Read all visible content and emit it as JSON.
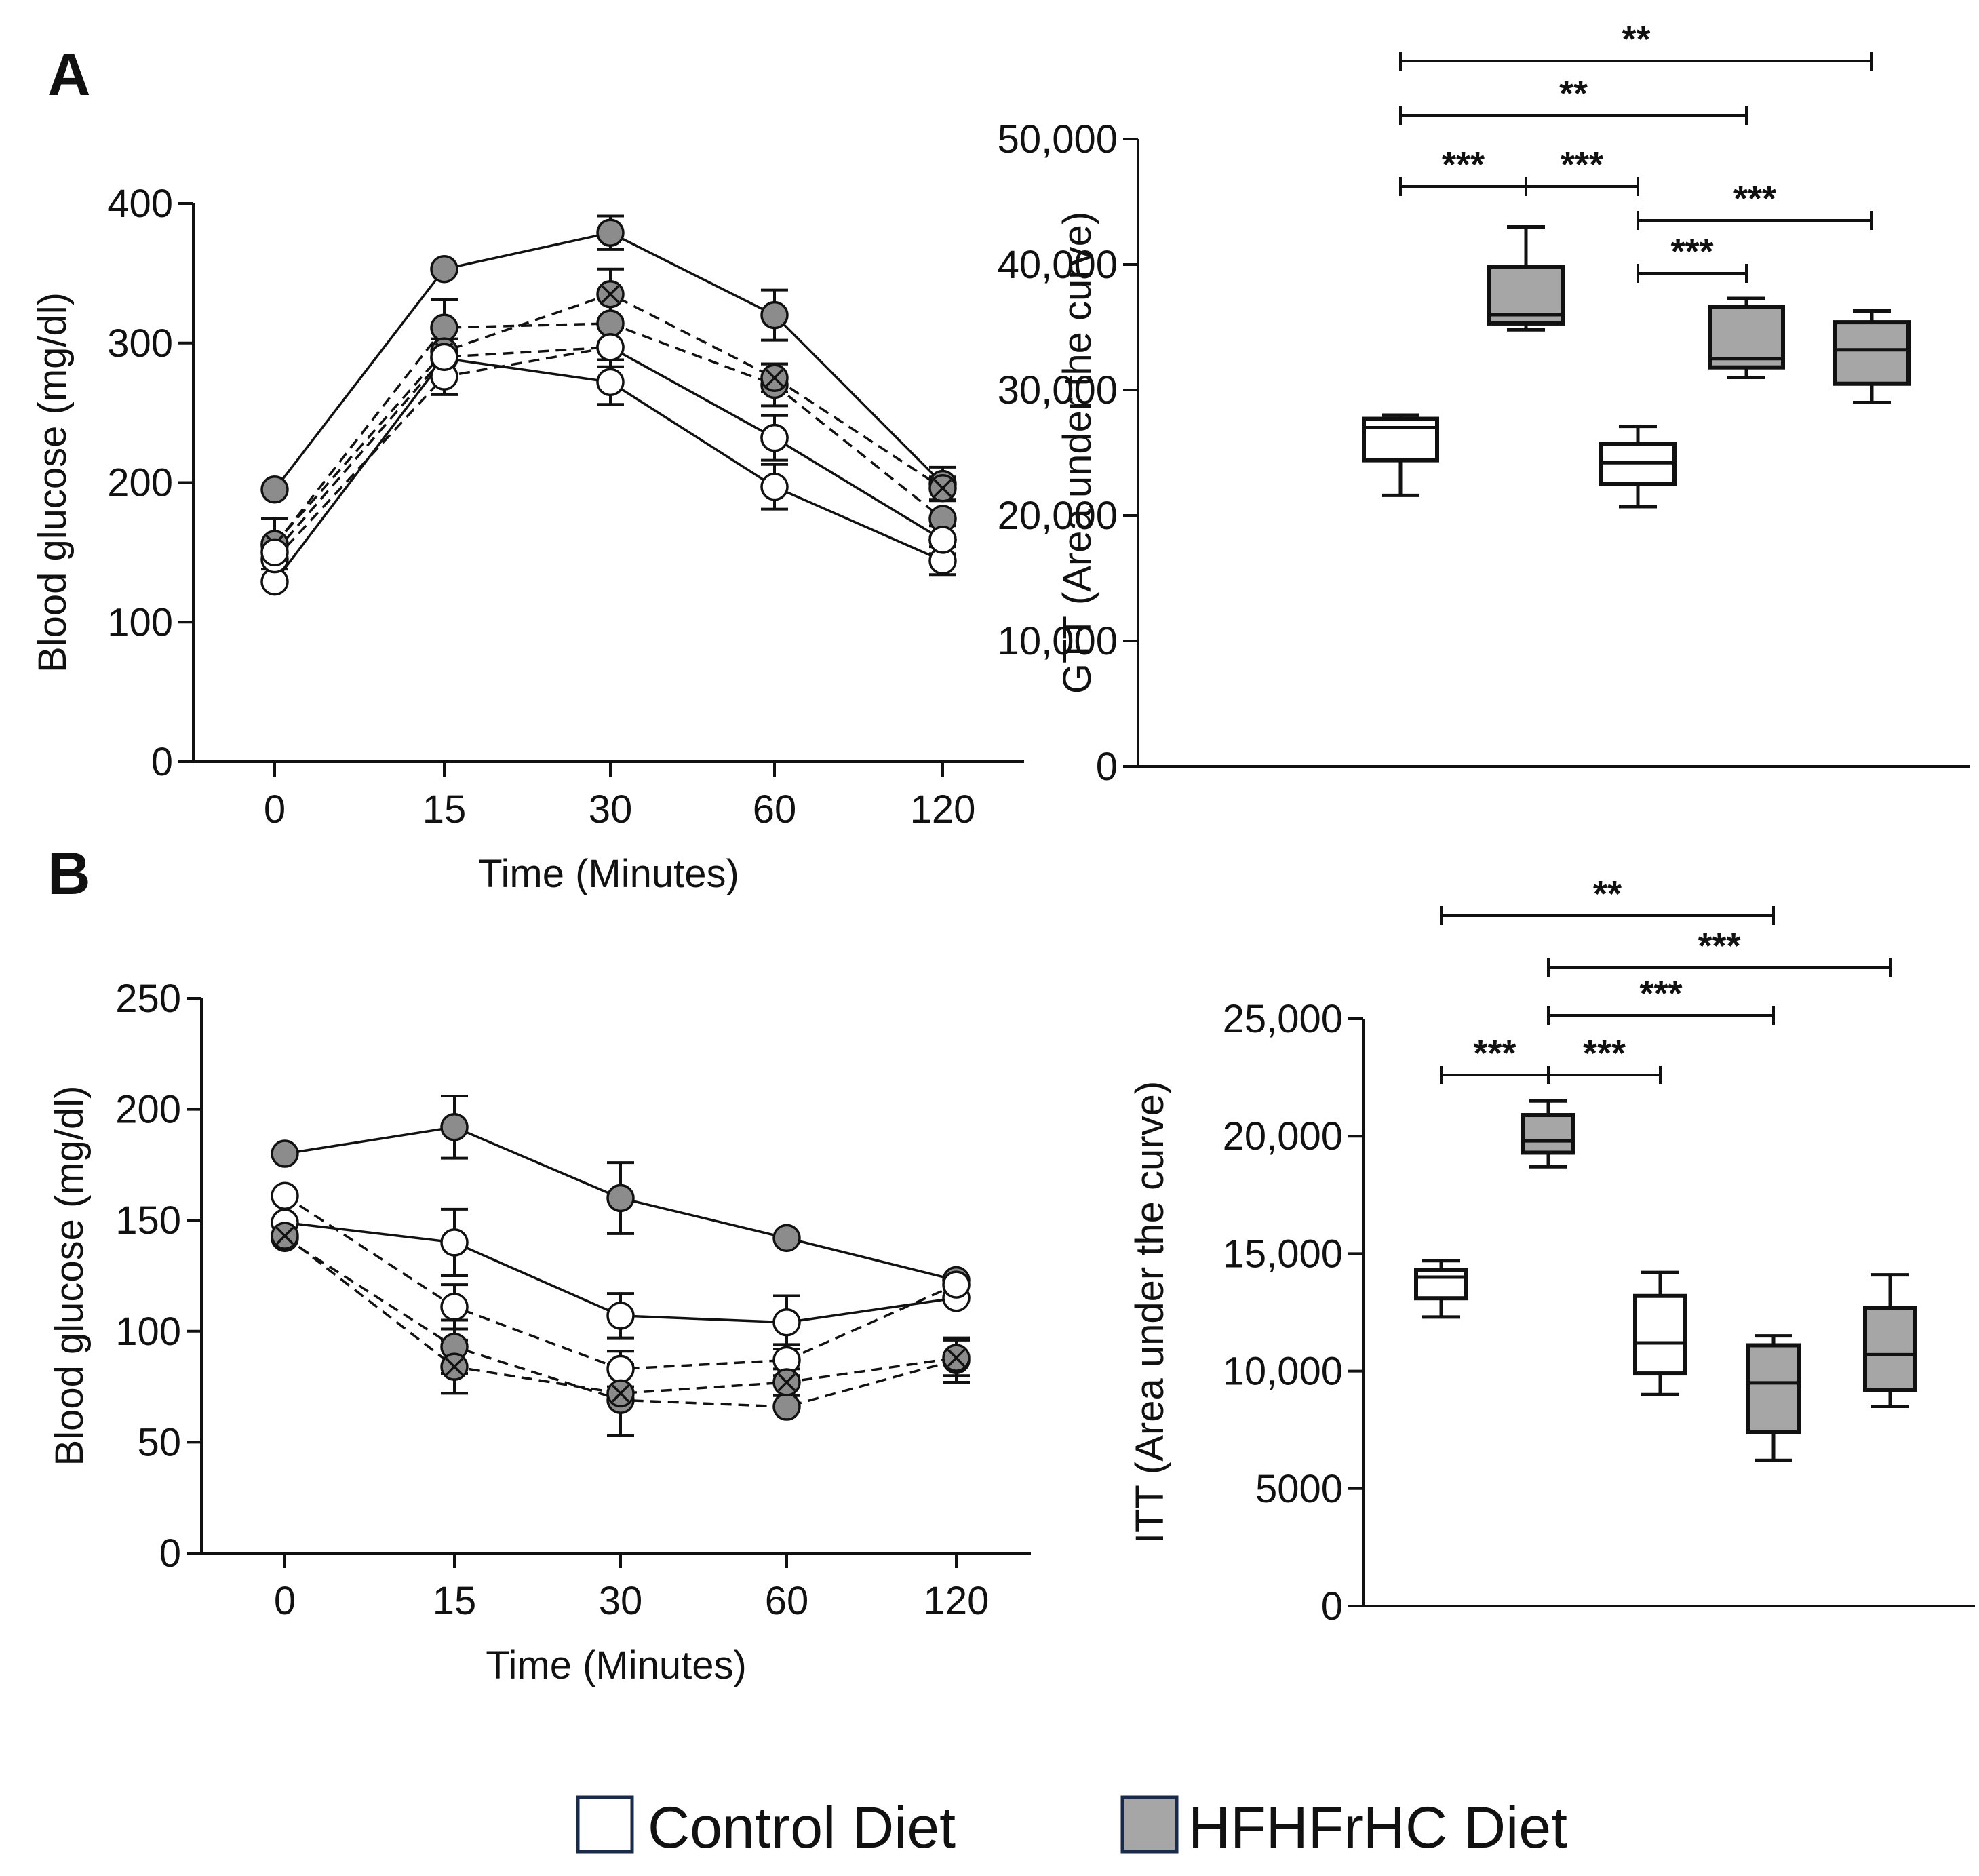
{
  "figure": {
    "panel_a_label": "A",
    "panel_b_label": "B",
    "legend": [
      {
        "label": "Control Diet",
        "color": "#ffffff"
      },
      {
        "label": "HFHFrHC Diet",
        "color": "#a6a6a6"
      }
    ]
  },
  "chart_data": [
    {
      "id": "gtt_line",
      "type": "line",
      "title": "",
      "xlabel": "Time (Minutes)",
      "ylabel": "Blood glucose (mg/dl)",
      "categories": [
        "0",
        "15",
        "30",
        "60",
        "120"
      ],
      "yticks": [
        "0",
        "100",
        "200",
        "300",
        "400"
      ],
      "ylim": [
        0,
        400
      ],
      "series": [
        {
          "name": "HFHFrHC solid",
          "fill": "#8c8c8c",
          "cross": false,
          "dash": false,
          "values": [
            195,
            353,
            379,
            320,
            199
          ],
          "errors": [
            0,
            0,
            12,
            18,
            12
          ]
        },
        {
          "name": "Control solid",
          "fill": "#ffffff",
          "cross": false,
          "dash": false,
          "values": [
            129,
            289,
            272,
            197,
            144
          ],
          "errors": [
            0,
            14,
            16,
            16,
            10
          ]
        },
        {
          "name": "HFHFrHC dashed 1",
          "fill": "#8c8c8c",
          "cross": false,
          "dash": true,
          "values": [
            155,
            311,
            314,
            270,
            174
          ],
          "errors": [
            0,
            20,
            0,
            15,
            0
          ]
        },
        {
          "name": "HFHFrHC dashed crossed",
          "fill": "#8c8c8c",
          "cross": true,
          "dash": true,
          "values": [
            156,
            294,
            335,
            275,
            196
          ],
          "errors": [
            18,
            0,
            18,
            10,
            8
          ]
        },
        {
          "name": "Control dashed 1",
          "fill": "#ffffff",
          "cross": false,
          "dash": true,
          "values": [
            145,
            276,
            297,
            232,
            159
          ],
          "errors": [
            0,
            13,
            14,
            16,
            10
          ]
        },
        {
          "name": "Control dashed 2",
          "fill": "#ffffff",
          "cross": false,
          "dash": true,
          "values": [
            150,
            290,
            297,
            232,
            159
          ],
          "errors": [
            0,
            0,
            0,
            0,
            0
          ]
        }
      ]
    },
    {
      "id": "gtt_box",
      "type": "box",
      "title": "",
      "ylabel": "GTT (Area under the curve)",
      "yticks": [
        "0",
        "10,000",
        "20,000",
        "30,000",
        "40,000",
        "50,000"
      ],
      "ylim": [
        0,
        50000
      ],
      "boxes": [
        {
          "group": "Control Diet",
          "fill": "#ffffff",
          "min": 21600,
          "q1": 24400,
          "median": 27000,
          "q3": 27700,
          "max": 28000
        },
        {
          "group": "HFHFrHC Diet",
          "fill": "#a6a6a6",
          "min": 34800,
          "q1": 35300,
          "median": 36000,
          "q3": 39800,
          "max": 43000
        },
        {
          "group": "Control Diet",
          "fill": "#ffffff",
          "min": 20700,
          "q1": 22500,
          "median": 24200,
          "q3": 25700,
          "max": 27100
        },
        {
          "group": "HFHFrHC Diet",
          "fill": "#a6a6a6",
          "min": 31000,
          "q1": 31800,
          "median": 32500,
          "q3": 36600,
          "max": 37300
        },
        {
          "group": "HFHFrHC Diet",
          "fill": "#a6a6a6",
          "min": 29000,
          "q1": 30500,
          "median": 33200,
          "q3": 35400,
          "max": 36300
        }
      ],
      "significance": [
        {
          "from": 1,
          "to": 5,
          "label": "**",
          "level": 0
        },
        {
          "from": 1,
          "to": 4,
          "label": "**",
          "level": 1
        },
        {
          "from": 1,
          "to": 2,
          "label": "***",
          "level": 2
        },
        {
          "from": 2,
          "to": 3,
          "label": "***",
          "level": 2
        },
        {
          "from": 3,
          "to": 5,
          "label": "***",
          "level": 3
        },
        {
          "from": 3,
          "to": 4,
          "label": "***",
          "level": 4
        }
      ]
    },
    {
      "id": "itt_line",
      "type": "line",
      "title": "",
      "xlabel": "Time (Minutes)",
      "ylabel": "Blood glucose (mg/dl)",
      "categories": [
        "0",
        "15",
        "30",
        "60",
        "120"
      ],
      "yticks": [
        "0",
        "50",
        "100",
        "150",
        "200",
        "250"
      ],
      "ylim": [
        0,
        250
      ],
      "series": [
        {
          "name": "HFHFrHC solid",
          "fill": "#8c8c8c",
          "cross": false,
          "dash": false,
          "values": [
            180,
            192,
            160,
            142,
            123
          ],
          "errors": [
            0,
            14,
            16,
            0,
            0
          ]
        },
        {
          "name": "Control solid",
          "fill": "#ffffff",
          "cross": false,
          "dash": false,
          "values": [
            149,
            140,
            107,
            104,
            115
          ],
          "errors": [
            0,
            15,
            10,
            12,
            0
          ]
        },
        {
          "name": "Control dashed 1",
          "fill": "#ffffff",
          "cross": false,
          "dash": true,
          "values": [
            161,
            111,
            83,
            87,
            121
          ],
          "errors": [
            0,
            10,
            8,
            7,
            0
          ]
        },
        {
          "name": "HFHFrHC dashed 1",
          "fill": "#8c8c8c",
          "cross": false,
          "dash": true,
          "values": [
            142,
            93,
            69,
            66,
            87
          ],
          "errors": [
            0,
            12,
            16,
            0,
            10
          ]
        },
        {
          "name": "HFHFrHC dashed crossed",
          "fill": "#8c8c8c",
          "cross": true,
          "dash": true,
          "values": [
            143,
            84,
            72,
            77,
            88
          ],
          "errors": [
            0,
            12,
            0,
            6,
            8
          ]
        }
      ]
    },
    {
      "id": "itt_box",
      "type": "box",
      "title": "",
      "ylabel": "ITT (Area under the curve)",
      "yticks": [
        "0",
        "5000",
        "10,000",
        "15,000",
        "20,000",
        "25,000"
      ],
      "ylim": [
        0,
        25000
      ],
      "boxes": [
        {
          "group": "Control Diet",
          "fill": "#ffffff",
          "min": 12300,
          "q1": 13100,
          "median": 14000,
          "q3": 14300,
          "max": 14700
        },
        {
          "group": "HFHFrHC Diet",
          "fill": "#a6a6a6",
          "min": 18700,
          "q1": 19300,
          "median": 19800,
          "q3": 20900,
          "max": 21500
        },
        {
          "group": "Control Diet",
          "fill": "#ffffff",
          "min": 9000,
          "q1": 9900,
          "median": 11200,
          "q3": 13200,
          "max": 14200
        },
        {
          "group": "HFHFrHC Diet",
          "fill": "#a6a6a6",
          "min": 6200,
          "q1": 7400,
          "median": 9500,
          "q3": 11100,
          "max": 11500
        },
        {
          "group": "HFHFrHC Diet",
          "fill": "#a6a6a6",
          "min": 8500,
          "q1": 9200,
          "median": 10700,
          "q3": 12700,
          "max": 14100
        }
      ],
      "significance": [
        {
          "from": 1,
          "to": 4,
          "label": "**",
          "level": 0
        },
        {
          "from": 2,
          "to": 5,
          "label": "***",
          "level": 1
        },
        {
          "from": 2,
          "to": 4,
          "label": "***",
          "level": 2
        },
        {
          "from": 1,
          "to": 2,
          "label": "***",
          "level": 3
        },
        {
          "from": 2,
          "to": 3,
          "label": "***",
          "level": 3
        }
      ]
    }
  ]
}
